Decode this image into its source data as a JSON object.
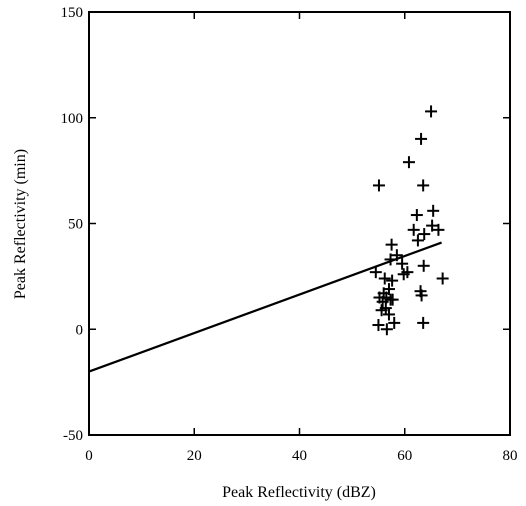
{
  "chart_data": {
    "type": "scatter",
    "title": "",
    "xlabel": "Peak Reflectivity (dBZ)",
    "ylabel": "Peak Reflectivity (min)",
    "xlim": [
      0,
      80
    ],
    "ylim": [
      -50,
      150
    ],
    "xticks": [
      0,
      20,
      40,
      60,
      80
    ],
    "yticks": [
      -50,
      0,
      50,
      100,
      150
    ],
    "xtick_labels": [
      "0",
      "20",
      "40",
      "60",
      "80"
    ],
    "ytick_labels": [
      "-50",
      "0",
      "50",
      "100",
      "150"
    ],
    "grid": false,
    "legend": "none",
    "marker": "plus",
    "points": [
      {
        "x": 65.0,
        "y": 103
      },
      {
        "x": 63.1,
        "y": 90
      },
      {
        "x": 60.8,
        "y": 79
      },
      {
        "x": 55.1,
        "y": 68
      },
      {
        "x": 63.5,
        "y": 68
      },
      {
        "x": 65.4,
        "y": 56
      },
      {
        "x": 62.3,
        "y": 54
      },
      {
        "x": 65.2,
        "y": 49
      },
      {
        "x": 61.7,
        "y": 47
      },
      {
        "x": 66.4,
        "y": 47
      },
      {
        "x": 63.7,
        "y": 45
      },
      {
        "x": 62.5,
        "y": 42
      },
      {
        "x": 57.5,
        "y": 40
      },
      {
        "x": 58.5,
        "y": 35
      },
      {
        "x": 57.3,
        "y": 33
      },
      {
        "x": 59.5,
        "y": 31
      },
      {
        "x": 63.6,
        "y": 30
      },
      {
        "x": 54.5,
        "y": 27
      },
      {
        "x": 59.8,
        "y": 26
      },
      {
        "x": 60.5,
        "y": 27
      },
      {
        "x": 56.2,
        "y": 24
      },
      {
        "x": 57.6,
        "y": 23
      },
      {
        "x": 67.2,
        "y": 24
      },
      {
        "x": 57.0,
        "y": 19
      },
      {
        "x": 56.0,
        "y": 17
      },
      {
        "x": 63.0,
        "y": 18
      },
      {
        "x": 55.2,
        "y": 15
      },
      {
        "x": 56.5,
        "y": 15
      },
      {
        "x": 57.3,
        "y": 14
      },
      {
        "x": 55.8,
        "y": 13
      },
      {
        "x": 57.7,
        "y": 14
      },
      {
        "x": 63.2,
        "y": 16
      },
      {
        "x": 56.4,
        "y": 10
      },
      {
        "x": 55.6,
        "y": 9
      },
      {
        "x": 57.0,
        "y": 7
      },
      {
        "x": 58.0,
        "y": 3
      },
      {
        "x": 55.0,
        "y": 2
      },
      {
        "x": 63.5,
        "y": 3
      },
      {
        "x": 56.6,
        "y": 0
      }
    ],
    "fit_line": {
      "x": [
        0,
        67
      ],
      "y": [
        -20,
        41
      ]
    }
  }
}
